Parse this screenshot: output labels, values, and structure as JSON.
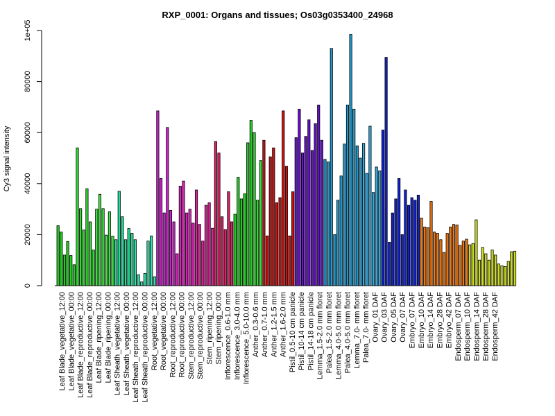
{
  "chart_data": {
    "type": "bar",
    "title": "RXP_0001: Organs and tissues; Os03g0353400_24968",
    "xlabel": "",
    "ylabel": "Cy3 signal intensity",
    "ylim": [
      0,
      100000
    ],
    "yticks": [
      "0",
      "20000",
      "40000",
      "60000",
      "80000",
      "1e+05"
    ],
    "grid": false,
    "legend": "none",
    "x_tick_labels": [
      "Leaf Blade_vegetative_12:00",
      "Leaf Blade_vegetative_00:00",
      "Leaf Blade_reproductive_12:00",
      "Leaf Blade_reproductive_00:00",
      "Leaf Blade_ripening_12:00",
      "Leaf Blade_ripening_00:00",
      "Leaf Sheath_vegetative_12:00",
      "Leaf Sheath_vegetative_00:00",
      "Leaf Sheath_reproductive_12:00",
      "Leaf Sheath_reproductive_00:00",
      "Root_vegetative_12:00",
      "Root_vegetative_00:00",
      "Root_reproductive_12:00",
      "Root_reproductive_00:00",
      "Stem_reproductive_12:00",
      "Stem_reproductive_00:00",
      "Stem_ripening_12:00",
      "Stem_ripening_00:00",
      "Inflorescence_0.6-1.0 mm",
      "Inflorescence_3.0-4.0 mm",
      "Inflorescence_5.0-10.0 mm",
      "Anther_0.3-0.6 mm",
      "Anther_0.7-1.0 mm",
      "Anther_1.2-1.5 mm",
      "Anther_1.6-2.0 mm",
      "Pistil_0.5-10 cm panicle",
      "Pistil_10-14 cm panicle",
      "Pistil_14-18 cm panicle",
      "Lemma_1.5-2.0 mm floret",
      "Palea_1.5-2.0 mm floret",
      "Lemma_4.0-5.0 mm floret",
      "Palea_4.0-5.0 mm floret",
      "Lemma_7.0- mm floret",
      "Palea_7.0- mm floret",
      "Ovary_01 DAF",
      "Ovary_03 DAF",
      "Ovary_05 DAF",
      "Ovary_07 DAF",
      "Embryo_07 DAF",
      "Embryo_10 DAF",
      "Embryo_14 DAF",
      "Embryo_28 DAF",
      "Embryo_42 DAF",
      "Endosperm_07 DAF",
      "Endosperm_10 DAF",
      "Endosperm_14 DAF",
      "Endosperm_28 DAF",
      "Endosperm_42 DAF"
    ],
    "groups": [
      {
        "color": "#1fd11f",
        "values": [
          23500,
          21000,
          12000,
          17300,
          11800,
          8200
        ]
      },
      {
        "color": "#33dd33",
        "values": [
          54000,
          30200,
          21800,
          38000,
          25000,
          14000
        ]
      },
      {
        "color": "#44e144",
        "values": [
          30000,
          35800,
          30200,
          19800,
          29000,
          19400
        ]
      },
      {
        "color": "#22dd99",
        "values": [
          18000,
          37000,
          27000,
          18000,
          22400,
          20500
        ]
      },
      {
        "color": "#33e0aa",
        "values": [
          18000,
          4300,
          1500,
          4800,
          17500,
          19500,
          3500
        ]
      },
      {
        "color": "#cc22cc",
        "values": [
          68500,
          42000,
          28500,
          62000,
          29500,
          25000
        ]
      },
      {
        "color": "#dd22bb",
        "values": [
          12500,
          39000,
          41000,
          28500,
          30000,
          24500
        ]
      },
      {
        "color": "#dd2299",
        "values": [
          37500,
          24000,
          17500,
          31500,
          32500,
          22500
        ]
      },
      {
        "color": "#dd2266",
        "values": [
          56500,
          52000,
          27000,
          22000,
          36800,
          25000
        ]
      },
      {
        "color": "#22cc22",
        "values": [
          28000,
          42500,
          34000,
          36000,
          56000,
          64800
        ]
      },
      {
        "color": "#33dd33",
        "values": [
          60000,
          33500,
          49000
        ]
      },
      {
        "color": "#cc1111",
        "values": [
          57000,
          19500,
          50500,
          54000,
          32500,
          34500,
          68500,
          46800,
          19500,
          36800
        ]
      },
      {
        "color": "#6611cc",
        "values": [
          58000,
          69200,
          52000,
          58500,
          65000,
          53000,
          63500,
          70800,
          57000
        ]
      },
      {
        "color": "#2299cc",
        "values": [
          49500,
          48500,
          93000,
          20000,
          33500,
          43000,
          55500,
          70800,
          98500,
          69200,
          54800,
          50000
        ]
      },
      {
        "color": "#33aadd",
        "values": [
          55800,
          44000,
          62500,
          36500,
          46500,
          45000
        ]
      },
      {
        "color": "#1122cc",
        "values": [
          61000,
          89500,
          17000,
          28500,
          34000,
          42000,
          20000,
          37500,
          31500,
          34500,
          33500,
          35500
        ]
      },
      {
        "color": "#ee7711",
        "values": [
          26500,
          23000,
          22700,
          33000,
          21000,
          20500,
          18000,
          13000,
          20500,
          23000,
          24000,
          23800,
          15800,
          17500,
          18200
        ]
      },
      {
        "color": "#ccdd22",
        "values": [
          16000,
          16500,
          25800,
          10000,
          15000,
          12500,
          10000,
          14000,
          12000,
          8500,
          7800,
          7500,
          9500,
          13300,
          13500
        ]
      }
    ]
  }
}
